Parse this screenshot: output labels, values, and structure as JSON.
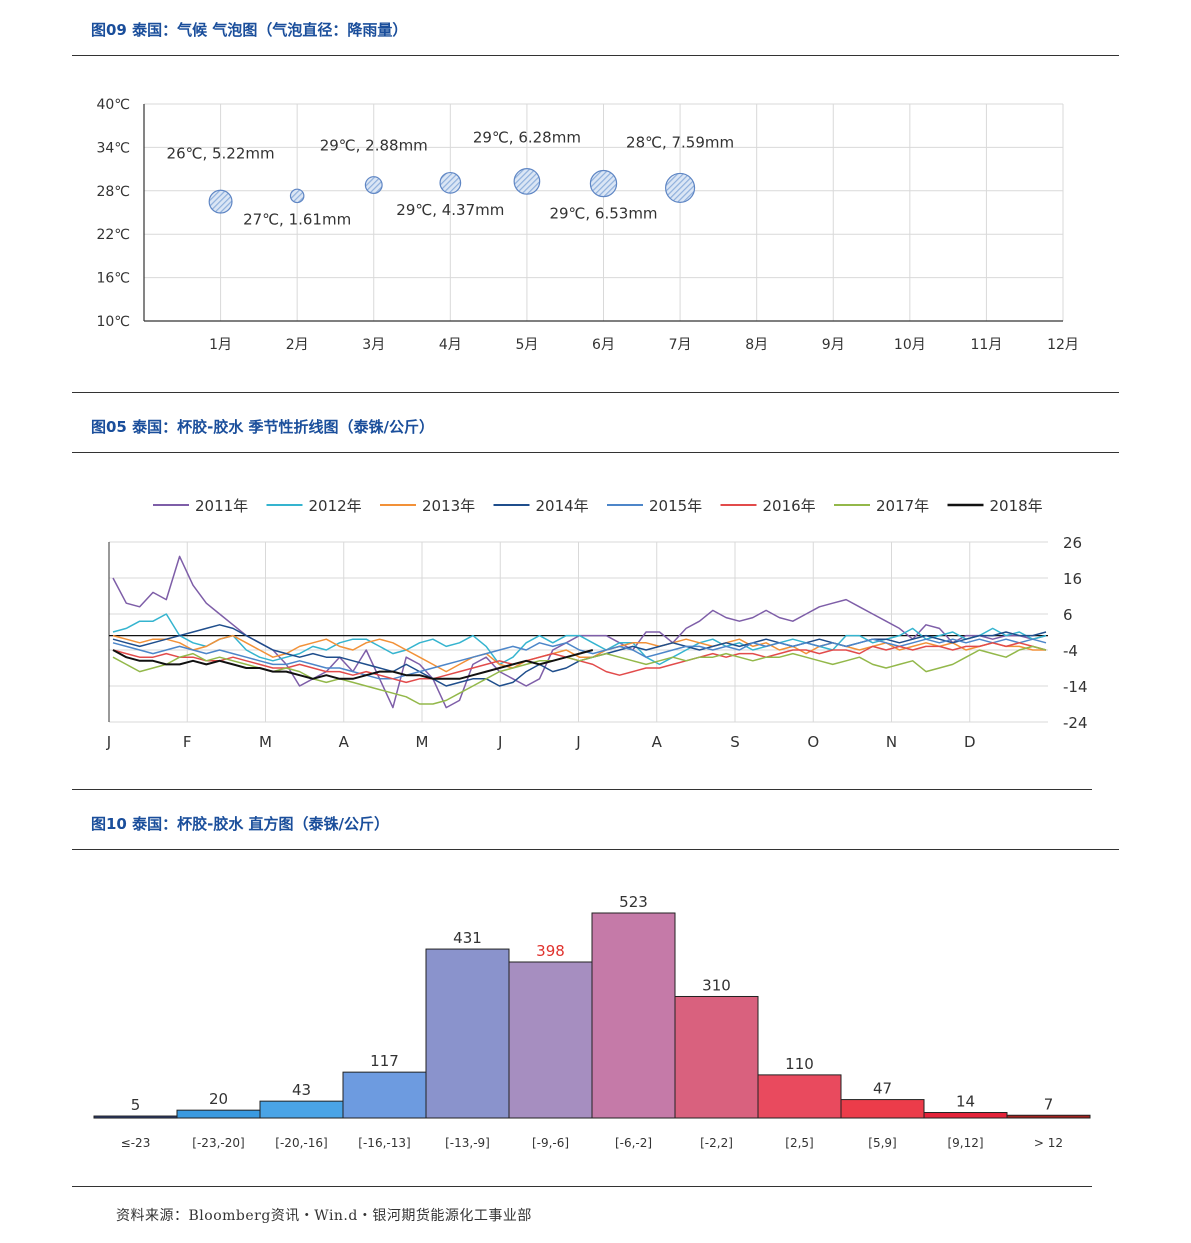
{
  "sections": {
    "bubble_title": "图09 泰国：气候 气泡图（气泡直径：降雨量）",
    "seasonal_title": "图05 泰国：杯胶-胶水 季节性折线图（泰铢/公斤）",
    "histogram_title": "图10 泰国：杯胶-胶水 直方图（泰铢/公斤）"
  },
  "source": "资料来源：Bloomberg资讯・Win.d・银河期货能源化工事业部",
  "chart_data": [
    {
      "id": "bubble",
      "type": "scatter",
      "title": "图09 泰国：气候 气泡图（气泡直径：降雨量）",
      "categories": [
        "1月",
        "2月",
        "3月",
        "4月",
        "5月",
        "6月",
        "7月",
        "8月",
        "9月",
        "10月",
        "11月",
        "12月"
      ],
      "ylim": [
        10,
        40
      ],
      "y_ticks": [
        "40℃",
        "34℃",
        "28℃",
        "22℃",
        "16℃",
        "10℃"
      ],
      "grid": true,
      "points": [
        {
          "month": 1,
          "temp": 26.5,
          "rain": 5.22,
          "label": "26℃, 5.22mm",
          "label_pos": "above-left"
        },
        {
          "month": 2,
          "temp": 27.3,
          "rain": 1.61,
          "label": "27℃, 1.61mm",
          "label_pos": "below"
        },
        {
          "month": 3,
          "temp": 28.8,
          "rain": 2.88,
          "label": "29℃, 2.88mm",
          "label_pos": "above"
        },
        {
          "month": 4,
          "temp": 29.1,
          "rain": 4.37,
          "label": "29℃, 4.37mm",
          "label_pos": "below"
        },
        {
          "month": 5,
          "temp": 29.3,
          "rain": 6.28,
          "label": "29℃, 6.28mm",
          "label_pos": "above"
        },
        {
          "month": 6,
          "temp": 29.0,
          "rain": 6.53,
          "label": "29℃, 6.53mm",
          "label_pos": "below"
        },
        {
          "month": 7,
          "temp": 28.4,
          "rain": 7.59,
          "label": "28℃, 7.59mm",
          "label_pos": "above"
        }
      ],
      "bubble_color": "#8fb0dc"
    },
    {
      "id": "seasonal",
      "type": "line",
      "title": "图05 泰国：杯胶-胶水 季节性折线图（泰铢/公斤）",
      "x_ticks": [
        "J",
        "F",
        "M",
        "A",
        "M",
        "J",
        "J",
        "A",
        "S",
        "O",
        "N",
        "D"
      ],
      "y_ticks": [
        26,
        16,
        6,
        -4,
        -14,
        -24
      ],
      "ylim": [
        -24,
        26
      ],
      "y_axis_side": "right",
      "legend_position": "top",
      "grid": true,
      "series": [
        {
          "name": "2011年",
          "color": "#7e5ea8",
          "values": [
            16,
            9,
            8,
            12,
            10,
            22,
            14,
            9,
            6,
            3,
            0,
            -2,
            -4,
            -8,
            -14,
            -12,
            -10,
            -6,
            -10,
            -4,
            -12,
            -20,
            -6,
            -8,
            -12,
            -20,
            -18,
            -8,
            -6,
            -10,
            -12,
            -14,
            -12,
            -4,
            -2,
            0,
            0,
            0,
            -2,
            -4,
            1,
            1,
            -2,
            2,
            4,
            7,
            5,
            4,
            5,
            7,
            5,
            4,
            6,
            8,
            9,
            10,
            8,
            6,
            4,
            2,
            -1,
            3,
            2,
            -2,
            0,
            0,
            -1,
            0,
            0,
            -1,
            0
          ]
        },
        {
          "name": "2012年",
          "color": "#35b4cf",
          "values": [
            1,
            2,
            4,
            4,
            6,
            0,
            -2,
            -3,
            -1,
            0,
            -4,
            -6,
            -7,
            -6,
            -5,
            -3,
            -4,
            -2,
            -1,
            -1,
            -3,
            -5,
            -4,
            -2,
            -1,
            -3,
            -2,
            0,
            -3,
            -8,
            -6,
            -2,
            0,
            -2,
            0,
            0,
            -2,
            -4,
            -2,
            -2,
            -6,
            -8,
            -6,
            -4,
            -2,
            -1,
            -3,
            -2,
            -4,
            -3,
            -2,
            -1,
            -2,
            -3,
            -4,
            0,
            0,
            -2,
            -1,
            0,
            2,
            -1,
            0,
            1,
            -1,
            0,
            2,
            0,
            1,
            -1,
            0
          ]
        },
        {
          "name": "2013年",
          "color": "#f29138",
          "values": [
            0,
            -1,
            -2,
            -1,
            -1,
            -2,
            -4,
            -3,
            -1,
            0,
            -2,
            -4,
            -6,
            -5,
            -3,
            -2,
            -1,
            -3,
            -4,
            -2,
            -1,
            -2,
            -4,
            -6,
            -8,
            -10,
            -8,
            -6,
            -5,
            -8,
            -9,
            -7,
            -6,
            -5,
            -4,
            -6,
            -6,
            -4,
            -3,
            -2,
            -2,
            -3,
            -2,
            -1,
            -2,
            -3,
            -2,
            -1,
            -3,
            -2,
            -4,
            -3,
            -5,
            -3,
            -2,
            -3,
            -4,
            -3,
            -2,
            -4,
            -3,
            -2,
            -3,
            -2,
            -4,
            -3,
            -2,
            -3,
            -3,
            -4,
            -4
          ]
        },
        {
          "name": "2014年",
          "color": "#1f4e8c",
          "values": [
            -1,
            -2,
            -3,
            -2,
            -1,
            0,
            1,
            2,
            3,
            2,
            0,
            -2,
            -4,
            -5,
            -6,
            -5,
            -6,
            -6,
            -7,
            -8,
            -9,
            -10,
            -8,
            -10,
            -12,
            -14,
            -13,
            -12,
            -12,
            -14,
            -13,
            -10,
            -8,
            -10,
            -9,
            -7,
            -6,
            -5,
            -4,
            -3,
            -4,
            -3,
            -2,
            -3,
            -4,
            -3,
            -2,
            -3,
            -2,
            -1,
            -2,
            -3,
            -2,
            -1,
            -2,
            -3,
            -2,
            -1,
            -1,
            -2,
            -1,
            0,
            -1,
            -2,
            -1,
            0,
            0,
            1,
            0,
            0,
            1
          ]
        },
        {
          "name": "2015年",
          "color": "#4d86c9",
          "values": [
            -2,
            -3,
            -4,
            -5,
            -4,
            -3,
            -4,
            -5,
            -4,
            -5,
            -6,
            -7,
            -8,
            -8,
            -7,
            -8,
            -9,
            -9,
            -10,
            -11,
            -12,
            -12,
            -11,
            -10,
            -9,
            -8,
            -7,
            -6,
            -5,
            -4,
            -3,
            -4,
            -2,
            -3,
            -2,
            -4,
            -5,
            -4,
            -3,
            -4,
            -6,
            -5,
            -4,
            -3,
            -3,
            -4,
            -3,
            -4,
            -2,
            -3,
            -2,
            -3,
            -2,
            -3,
            -2,
            -3,
            -2,
            -1,
            -2,
            -3,
            -2,
            -1,
            -2,
            -1,
            -2,
            -1,
            -2,
            -1,
            -2,
            -1,
            -2
          ]
        },
        {
          "name": "2016年",
          "color": "#e24b4b",
          "values": [
            -4,
            -5,
            -6,
            -6,
            -5,
            -6,
            -6,
            -7,
            -7,
            -6,
            -7,
            -8,
            -9,
            -9,
            -8,
            -9,
            -10,
            -10,
            -11,
            -10,
            -11,
            -12,
            -13,
            -12,
            -12,
            -11,
            -10,
            -9,
            -8,
            -7,
            -8,
            -7,
            -6,
            -5,
            -6,
            -7,
            -8,
            -10,
            -11,
            -10,
            -9,
            -9,
            -8,
            -7,
            -6,
            -5,
            -6,
            -5,
            -5,
            -6,
            -5,
            -4,
            -4,
            -5,
            -4,
            -4,
            -5,
            -3,
            -4,
            -3,
            -4,
            -3,
            -3,
            -4,
            -3,
            -3,
            -2,
            -3,
            -2,
            -3,
            -4
          ]
        },
        {
          "name": "2017年",
          "color": "#93b84a",
          "values": [
            -6,
            -8,
            -10,
            -9,
            -8,
            -6,
            -5,
            -7,
            -6,
            -7,
            -8,
            -9,
            -10,
            -9,
            -10,
            -12,
            -13,
            -12,
            -13,
            -14,
            -15,
            -16,
            -17,
            -19,
            -19,
            -18,
            -16,
            -14,
            -12,
            -10,
            -9,
            -8,
            -7,
            -7,
            -6,
            -7,
            -6,
            -5,
            -6,
            -7,
            -8,
            -7,
            -6,
            -7,
            -6,
            -6,
            -5,
            -6,
            -7,
            -6,
            -6,
            -5,
            -6,
            -7,
            -8,
            -7,
            -6,
            -8,
            -9,
            -8,
            -7,
            -10,
            -9,
            -8,
            -6,
            -4,
            -5,
            -6,
            -4,
            -3,
            -4
          ]
        },
        {
          "name": "2018年",
          "color": "#111111",
          "values": [
            -4,
            -6,
            -7,
            -7,
            -8,
            -8,
            -7,
            -8,
            -7,
            -8,
            -9,
            -9,
            -10,
            -10,
            -11,
            -12,
            -11,
            -12,
            -12,
            -11,
            -10,
            -10,
            -11,
            -11,
            -12,
            -12,
            -12,
            -11,
            -10,
            -9,
            -8,
            -7,
            -8,
            -7,
            -6,
            -5,
            -4
          ]
        }
      ]
    },
    {
      "id": "histogram",
      "type": "bar",
      "title": "图10 泰国：杯胶-胶水 直方图（泰铢/公斤）",
      "categories": [
        "≤-23",
        "[-23,-20]",
        "[-20,-16]",
        "[-16,-13]",
        "[-13,-9]",
        "[-9,-6]",
        "[-6,-2]",
        "[-2,2]",
        "[2,5]",
        "[5,9]",
        "[9,12]",
        "> 12"
      ],
      "values": [
        5,
        20,
        43,
        117,
        431,
        398,
        523,
        310,
        110,
        47,
        14,
        7
      ],
      "colors": [
        "#2c3e7a",
        "#3a9ae0",
        "#4aa4e6",
        "#6d9be0",
        "#8a93cc",
        "#a68ec0",
        "#c57aa8",
        "#d9617e",
        "#e94a5e",
        "#ec3c4a",
        "#e4233a",
        "#a3231f"
      ],
      "highlight_label_index": 5,
      "highlight_color": "#e0332e"
    }
  ]
}
